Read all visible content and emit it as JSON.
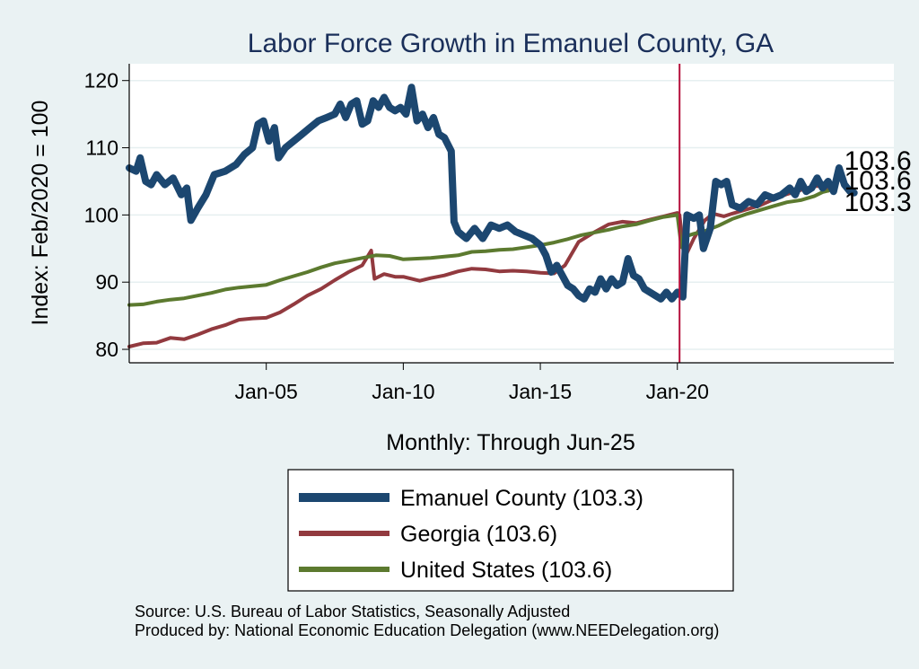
{
  "chart_data": {
    "type": "line",
    "title": "Labor Force Growth in Emanuel  County, GA",
    "xlabel": "Monthly: Through Jun-25",
    "ylabel": "Index: Feb/2020 = 100",
    "xlim": [
      2000.0,
      2027.9
    ],
    "ylim": [
      78.0,
      122.5
    ],
    "yticks": [
      80,
      90,
      100,
      110,
      120
    ],
    "xticks": [
      {
        "value": 2005.0,
        "label": "Jan-05"
      },
      {
        "value": 2010.0,
        "label": "Jan-10"
      },
      {
        "value": 2015.0,
        "label": "Jan-15"
      },
      {
        "value": 2020.0,
        "label": "Jan-20"
      }
    ],
    "reference_line": {
      "x": 2020.08,
      "color": "#b5103b"
    },
    "series": [
      {
        "name": "Georgia",
        "legend": "Georgia (103.6)",
        "end_label": "103.6",
        "color": "#923a3f",
        "width": 4,
        "points": [
          [
            2000.0,
            80.4
          ],
          [
            2000.5,
            80.9
          ],
          [
            2001.0,
            81.0
          ],
          [
            2001.5,
            81.7
          ],
          [
            2002.0,
            81.5
          ],
          [
            2002.5,
            82.2
          ],
          [
            2003.0,
            83.0
          ],
          [
            2003.5,
            83.6
          ],
          [
            2004.0,
            84.4
          ],
          [
            2004.5,
            84.6
          ],
          [
            2005.0,
            84.7
          ],
          [
            2005.5,
            85.5
          ],
          [
            2006.0,
            86.7
          ],
          [
            2006.5,
            88.0
          ],
          [
            2007.0,
            89.0
          ],
          [
            2007.5,
            90.3
          ],
          [
            2008.0,
            91.5
          ],
          [
            2008.5,
            92.5
          ],
          [
            2008.83,
            94.7
          ],
          [
            2008.95,
            90.5
          ],
          [
            2009.3,
            91.2
          ],
          [
            2009.7,
            90.8
          ],
          [
            2010.0,
            90.8
          ],
          [
            2010.6,
            90.2
          ],
          [
            2011.0,
            90.6
          ],
          [
            2011.5,
            91.0
          ],
          [
            2012.0,
            91.6
          ],
          [
            2012.5,
            92.0
          ],
          [
            2013.0,
            91.9
          ],
          [
            2013.5,
            91.6
          ],
          [
            2014.0,
            91.7
          ],
          [
            2014.5,
            91.6
          ],
          [
            2015.0,
            91.4
          ],
          [
            2015.5,
            91.3
          ],
          [
            2015.9,
            92.5
          ],
          [
            2016.4,
            96.0
          ],
          [
            2017.0,
            97.5
          ],
          [
            2017.5,
            98.6
          ],
          [
            2018.0,
            99.0
          ],
          [
            2018.5,
            98.8
          ],
          [
            2019.0,
            99.3
          ],
          [
            2019.5,
            99.8
          ],
          [
            2020.0,
            100.3
          ],
          [
            2020.08,
            100.0
          ],
          [
            2020.25,
            93.5
          ],
          [
            2020.6,
            96.5
          ],
          [
            2021.0,
            99.2
          ],
          [
            2021.3,
            100.2
          ],
          [
            2021.7,
            99.8
          ],
          [
            2022.0,
            100.2
          ],
          [
            2022.5,
            100.8
          ],
          [
            2023.0,
            101.4
          ],
          [
            2023.5,
            102.3
          ],
          [
            2024.0,
            103.1
          ],
          [
            2024.5,
            103.7
          ],
          [
            2025.0,
            104.3
          ],
          [
            2025.3,
            104.3
          ],
          [
            2025.5,
            103.6
          ]
        ]
      },
      {
        "name": "United States",
        "legend": "United States (103.6)",
        "end_label": "103.6",
        "color": "#5c7a2f",
        "width": 4,
        "points": [
          [
            2000.0,
            86.6
          ],
          [
            2000.5,
            86.7
          ],
          [
            2001.0,
            87.1
          ],
          [
            2001.5,
            87.4
          ],
          [
            2002.0,
            87.6
          ],
          [
            2002.5,
            88.0
          ],
          [
            2003.0,
            88.4
          ],
          [
            2003.5,
            88.9
          ],
          [
            2004.0,
            89.2
          ],
          [
            2004.5,
            89.4
          ],
          [
            2005.0,
            89.6
          ],
          [
            2005.5,
            90.3
          ],
          [
            2006.0,
            90.9
          ],
          [
            2006.5,
            91.5
          ],
          [
            2007.0,
            92.2
          ],
          [
            2007.5,
            92.8
          ],
          [
            2008.0,
            93.2
          ],
          [
            2008.5,
            93.6
          ],
          [
            2009.0,
            94.0
          ],
          [
            2009.5,
            93.9
          ],
          [
            2010.0,
            93.4
          ],
          [
            2010.5,
            93.5
          ],
          [
            2011.0,
            93.6
          ],
          [
            2011.5,
            93.8
          ],
          [
            2012.0,
            94.0
          ],
          [
            2012.5,
            94.5
          ],
          [
            2013.0,
            94.6
          ],
          [
            2013.5,
            94.8
          ],
          [
            2014.0,
            94.9
          ],
          [
            2014.5,
            95.2
          ],
          [
            2015.0,
            95.5
          ],
          [
            2015.5,
            95.9
          ],
          [
            2016.0,
            96.4
          ],
          [
            2016.5,
            97.0
          ],
          [
            2017.0,
            97.4
          ],
          [
            2017.5,
            97.8
          ],
          [
            2018.0,
            98.3
          ],
          [
            2018.5,
            98.6
          ],
          [
            2019.0,
            99.2
          ],
          [
            2019.5,
            99.7
          ],
          [
            2020.0,
            100.0
          ],
          [
            2020.15,
            95.2
          ],
          [
            2020.3,
            96.8
          ],
          [
            2020.6,
            97.2
          ],
          [
            2021.0,
            97.6
          ],
          [
            2021.5,
            98.4
          ],
          [
            2022.0,
            99.4
          ],
          [
            2022.5,
            100.1
          ],
          [
            2023.0,
            100.7
          ],
          [
            2023.5,
            101.3
          ],
          [
            2024.0,
            101.9
          ],
          [
            2024.5,
            102.2
          ],
          [
            2025.0,
            102.8
          ],
          [
            2025.3,
            103.4
          ],
          [
            2025.5,
            103.6
          ]
        ]
      },
      {
        "name": "Emanuel  County",
        "legend": "Emanuel  County (103.3)",
        "end_label": "103.3",
        "color": "#1c4770",
        "width": 8,
        "points": [
          [
            2000.0,
            107.0
          ],
          [
            2000.25,
            106.5
          ],
          [
            2000.4,
            108.5
          ],
          [
            2000.6,
            105.0
          ],
          [
            2000.8,
            104.5
          ],
          [
            2001.0,
            106.0
          ],
          [
            2001.3,
            104.5
          ],
          [
            2001.6,
            105.5
          ],
          [
            2001.9,
            103.0
          ],
          [
            2002.1,
            104.0
          ],
          [
            2002.25,
            99.2
          ],
          [
            2002.5,
            101.0
          ],
          [
            2002.8,
            103.0
          ],
          [
            2003.1,
            106.0
          ],
          [
            2003.5,
            106.5
          ],
          [
            2003.9,
            107.5
          ],
          [
            2004.2,
            109.0
          ],
          [
            2004.5,
            110.0
          ],
          [
            2004.7,
            113.5
          ],
          [
            2004.9,
            114.0
          ],
          [
            2005.1,
            111.0
          ],
          [
            2005.3,
            113.0
          ],
          [
            2005.45,
            108.5
          ],
          [
            2005.7,
            110.0
          ],
          [
            2006.0,
            111.0
          ],
          [
            2006.3,
            112.0
          ],
          [
            2006.6,
            113.0
          ],
          [
            2006.9,
            114.0
          ],
          [
            2007.2,
            114.5
          ],
          [
            2007.5,
            115.0
          ],
          [
            2007.7,
            116.5
          ],
          [
            2007.9,
            114.5
          ],
          [
            2008.1,
            116.5
          ],
          [
            2008.3,
            117.0
          ],
          [
            2008.5,
            113.5
          ],
          [
            2008.7,
            114.0
          ],
          [
            2008.9,
            117.0
          ],
          [
            2009.1,
            116.0
          ],
          [
            2009.3,
            117.5
          ],
          [
            2009.5,
            116.0
          ],
          [
            2009.7,
            115.5
          ],
          [
            2009.9,
            116.0
          ],
          [
            2010.1,
            115.0
          ],
          [
            2010.3,
            119.0
          ],
          [
            2010.5,
            114.0
          ],
          [
            2010.7,
            115.0
          ],
          [
            2010.9,
            113.0
          ],
          [
            2011.1,
            114.5
          ],
          [
            2011.3,
            112.0
          ],
          [
            2011.5,
            111.5
          ],
          [
            2011.75,
            109.5
          ],
          [
            2011.85,
            99.0
          ],
          [
            2012.0,
            97.5
          ],
          [
            2012.3,
            96.5
          ],
          [
            2012.6,
            98.0
          ],
          [
            2012.9,
            96.5
          ],
          [
            2013.2,
            98.5
          ],
          [
            2013.5,
            98.0
          ],
          [
            2013.8,
            98.5
          ],
          [
            2014.1,
            97.5
          ],
          [
            2014.4,
            97.0
          ],
          [
            2014.7,
            96.5
          ],
          [
            2015.0,
            95.5
          ],
          [
            2015.2,
            94.0
          ],
          [
            2015.4,
            91.5
          ],
          [
            2015.6,
            92.5
          ],
          [
            2015.8,
            91.0
          ],
          [
            2016.0,
            89.5
          ],
          [
            2016.2,
            89.0
          ],
          [
            2016.4,
            88.0
          ],
          [
            2016.6,
            87.5
          ],
          [
            2016.8,
            89.0
          ],
          [
            2017.0,
            88.5
          ],
          [
            2017.2,
            90.5
          ],
          [
            2017.4,
            89.0
          ],
          [
            2017.6,
            90.5
          ],
          [
            2017.8,
            89.5
          ],
          [
            2018.0,
            90.0
          ],
          [
            2018.2,
            93.5
          ],
          [
            2018.4,
            91.0
          ],
          [
            2018.6,
            90.5
          ],
          [
            2018.8,
            89.0
          ],
          [
            2019.0,
            88.5
          ],
          [
            2019.2,
            88.0
          ],
          [
            2019.4,
            87.5
          ],
          [
            2019.6,
            88.5
          ],
          [
            2019.8,
            87.5
          ],
          [
            2020.0,
            88.5
          ],
          [
            2020.2,
            87.8
          ],
          [
            2020.35,
            100.0
          ],
          [
            2020.6,
            99.5
          ],
          [
            2020.8,
            100.0
          ],
          [
            2020.95,
            95.0
          ],
          [
            2021.2,
            98.0
          ],
          [
            2021.4,
            105.0
          ],
          [
            2021.6,
            104.5
          ],
          [
            2021.8,
            105.0
          ],
          [
            2022.0,
            101.5
          ],
          [
            2022.3,
            101.0
          ],
          [
            2022.6,
            102.0
          ],
          [
            2022.9,
            101.5
          ],
          [
            2023.2,
            103.0
          ],
          [
            2023.5,
            102.5
          ],
          [
            2023.8,
            103.0
          ],
          [
            2024.1,
            104.0
          ],
          [
            2024.3,
            103.0
          ],
          [
            2024.5,
            105.0
          ],
          [
            2024.7,
            103.5
          ],
          [
            2024.9,
            104.0
          ],
          [
            2025.1,
            105.5
          ],
          [
            2025.3,
            104.0
          ],
          [
            2025.5,
            105.0
          ],
          [
            2025.7,
            103.5
          ],
          [
            2025.9,
            107.0
          ],
          [
            2026.1,
            104.5
          ],
          [
            2026.3,
            103.5
          ],
          [
            2026.45,
            103.3
          ]
        ]
      }
    ],
    "legend_order": [
      "Emanuel  County",
      "Georgia",
      "United States"
    ],
    "legend_position": "bottom-center"
  },
  "footer": {
    "source": "Source: U.S. Bureau of Labor Statistics, Seasonally Adjusted",
    "produced_by": "Produced by: National Economic Education Delegation (www.NEEDelegation.org)"
  }
}
